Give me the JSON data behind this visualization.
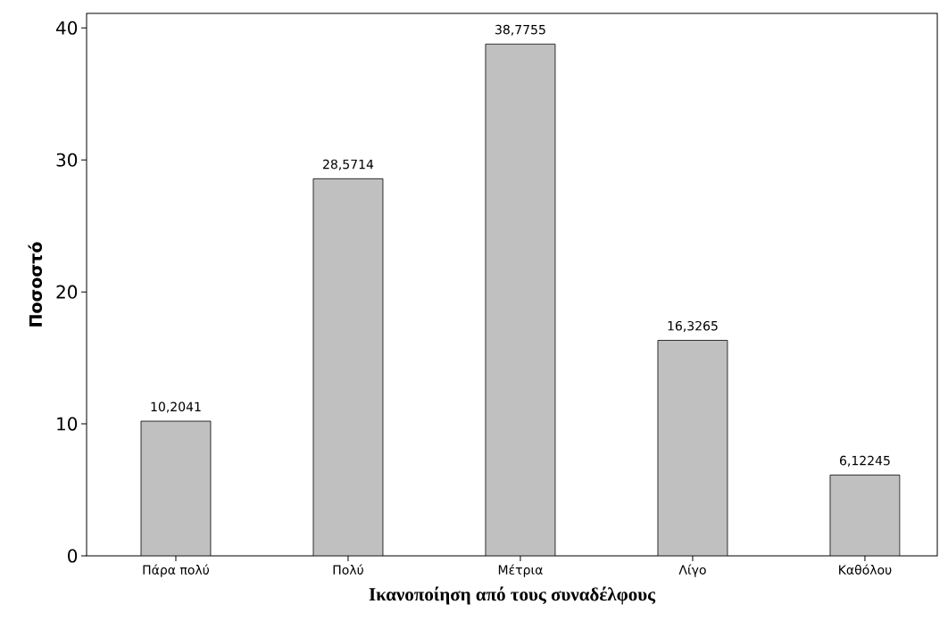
{
  "chart_data": {
    "type": "bar",
    "xlabel": "Ικανοποίηση από τους συναδέλφους",
    "ylabel": "Ποσοστό",
    "categories": [
      "Πάρα πολύ",
      "Πολύ",
      "Μέτρια",
      "Λίγο",
      "Καθόλου"
    ],
    "values": [
      10.2041,
      28.5714,
      38.7755,
      16.3265,
      6.12245
    ],
    "value_labels": [
      "10,2041",
      "28,5714",
      "38,7755",
      "16,3265",
      "6,12245"
    ],
    "color": "#c0c0c0",
    "ylim": [
      0,
      41.1
    ],
    "yticks": [
      0,
      10,
      20,
      30,
      40
    ],
    "grid": false
  }
}
